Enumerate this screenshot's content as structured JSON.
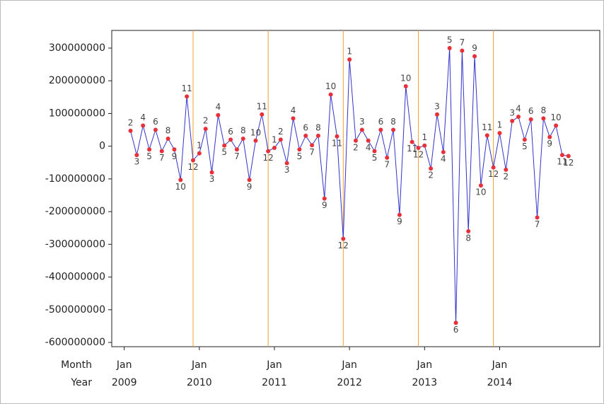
{
  "chart_data": {
    "type": "line",
    "x": [
      "2009-02",
      "2009-03",
      "2009-04",
      "2009-05",
      "2009-06",
      "2009-07",
      "2009-08",
      "2009-09",
      "2009-10",
      "2009-11",
      "2009-12",
      "2010-01",
      "2010-02",
      "2010-03",
      "2010-04",
      "2010-05",
      "2010-06",
      "2010-07",
      "2010-08",
      "2010-09",
      "2010-10",
      "2010-11",
      "2010-12",
      "2011-01",
      "2011-02",
      "2011-03",
      "2011-04",
      "2011-05",
      "2011-06",
      "2011-07",
      "2011-08",
      "2011-09",
      "2011-10",
      "2011-11",
      "2011-12",
      "2012-01",
      "2012-02",
      "2012-03",
      "2012-04",
      "2012-05",
      "2012-06",
      "2012-07",
      "2012-08",
      "2012-09",
      "2012-10",
      "2012-11",
      "2012-12",
      "2013-01",
      "2013-02",
      "2013-03",
      "2013-04",
      "2013-05",
      "2013-06",
      "2013-07",
      "2013-08",
      "2013-09",
      "2013-10",
      "2013-11",
      "2013-12",
      "2014-01",
      "2014-02",
      "2014-03",
      "2014-04",
      "2014-05",
      "2014-06",
      "2014-07",
      "2014-08",
      "2014-09",
      "2014-10",
      "2014-11",
      "2014-12"
    ],
    "series": [
      {
        "color": "#3333cc",
        "marker_color": "#e8303a",
        "values": [
          47000000,
          -27000000,
          63000000,
          -10000000,
          50000000,
          -15000000,
          23000000,
          -10000000,
          -103000000,
          152000000,
          -43000000,
          -22000000,
          53000000,
          -80000000,
          95000000,
          2000000,
          20000000,
          -10000000,
          23000000,
          -103000000,
          17000000,
          97000000,
          -15000000,
          -5000000,
          20000000,
          -52000000,
          85000000,
          -10000000,
          32000000,
          3000000,
          32000000,
          -160000000,
          158000000,
          30000000,
          -283000000,
          265000000,
          17000000,
          50000000,
          17000000,
          -15000000,
          50000000,
          -35000000,
          50000000,
          -210000000,
          183000000,
          13000000,
          -5000000,
          2000000,
          -68000000,
          97000000,
          -18000000,
          300000000,
          -540000000,
          292000000,
          -260000000,
          275000000,
          -120000000,
          33000000,
          -65000000,
          40000000,
          -72000000,
          77000000,
          90000000,
          20000000,
          82000000,
          -218000000,
          85000000,
          28000000,
          63000000,
          -27000000,
          -30000000
        ],
        "point_labels": [
          "2",
          "3",
          "4",
          "5",
          "6",
          "7",
          "8",
          "9",
          "10",
          "11",
          "12",
          "1",
          "2",
          "3",
          "4",
          "5",
          "6",
          "7",
          "8",
          "9",
          "10",
          "11",
          "12",
          "1",
          "2",
          "3",
          "4",
          "5",
          "6",
          "7",
          "8",
          "9",
          "10",
          "11",
          "12",
          "1",
          "2",
          "3",
          "4",
          "5",
          "6",
          "7",
          "8",
          "9",
          "10",
          "11",
          "12",
          "1",
          "2",
          "3",
          "4",
          "5",
          "6",
          "7",
          "8",
          "9",
          "10",
          "11",
          "12",
          "1",
          "2",
          "3",
          "4",
          "5",
          "6",
          "7",
          "8",
          "9",
          "10",
          "11",
          "12"
        ]
      }
    ],
    "xlim": [
      "2008-11",
      "2015-05"
    ],
    "ylim": [
      -613000000,
      354000000
    ],
    "yticks": [
      300000000,
      200000000,
      100000000,
      0,
      -100000000,
      -200000000,
      -300000000,
      -400000000,
      -500000000,
      -600000000
    ],
    "xaxis_row_labels": [
      "Month",
      "Year"
    ],
    "xticks_month": [
      {
        "value": "2009-01",
        "label": "Jan"
      },
      {
        "value": "2010-01",
        "label": "Jan"
      },
      {
        "value": "2011-01",
        "label": "Jan"
      },
      {
        "value": "2012-01",
        "label": "Jan"
      },
      {
        "value": "2013-01",
        "label": "Jan"
      },
      {
        "value": "2014-01",
        "label": "Jan"
      }
    ],
    "xticks_year": [
      {
        "value": "2009-01",
        "label": "2009"
      },
      {
        "value": "2010-01",
        "label": "2010"
      },
      {
        "value": "2011-01",
        "label": "2011"
      },
      {
        "value": "2012-01",
        "label": "2012"
      },
      {
        "value": "2013-01",
        "label": "2013"
      },
      {
        "value": "2014-01",
        "label": "2014"
      }
    ],
    "reference_lines": {
      "color": "#f0a030",
      "x": [
        "2009-12",
        "2010-12",
        "2011-12",
        "2012-12",
        "2013-12"
      ]
    }
  }
}
